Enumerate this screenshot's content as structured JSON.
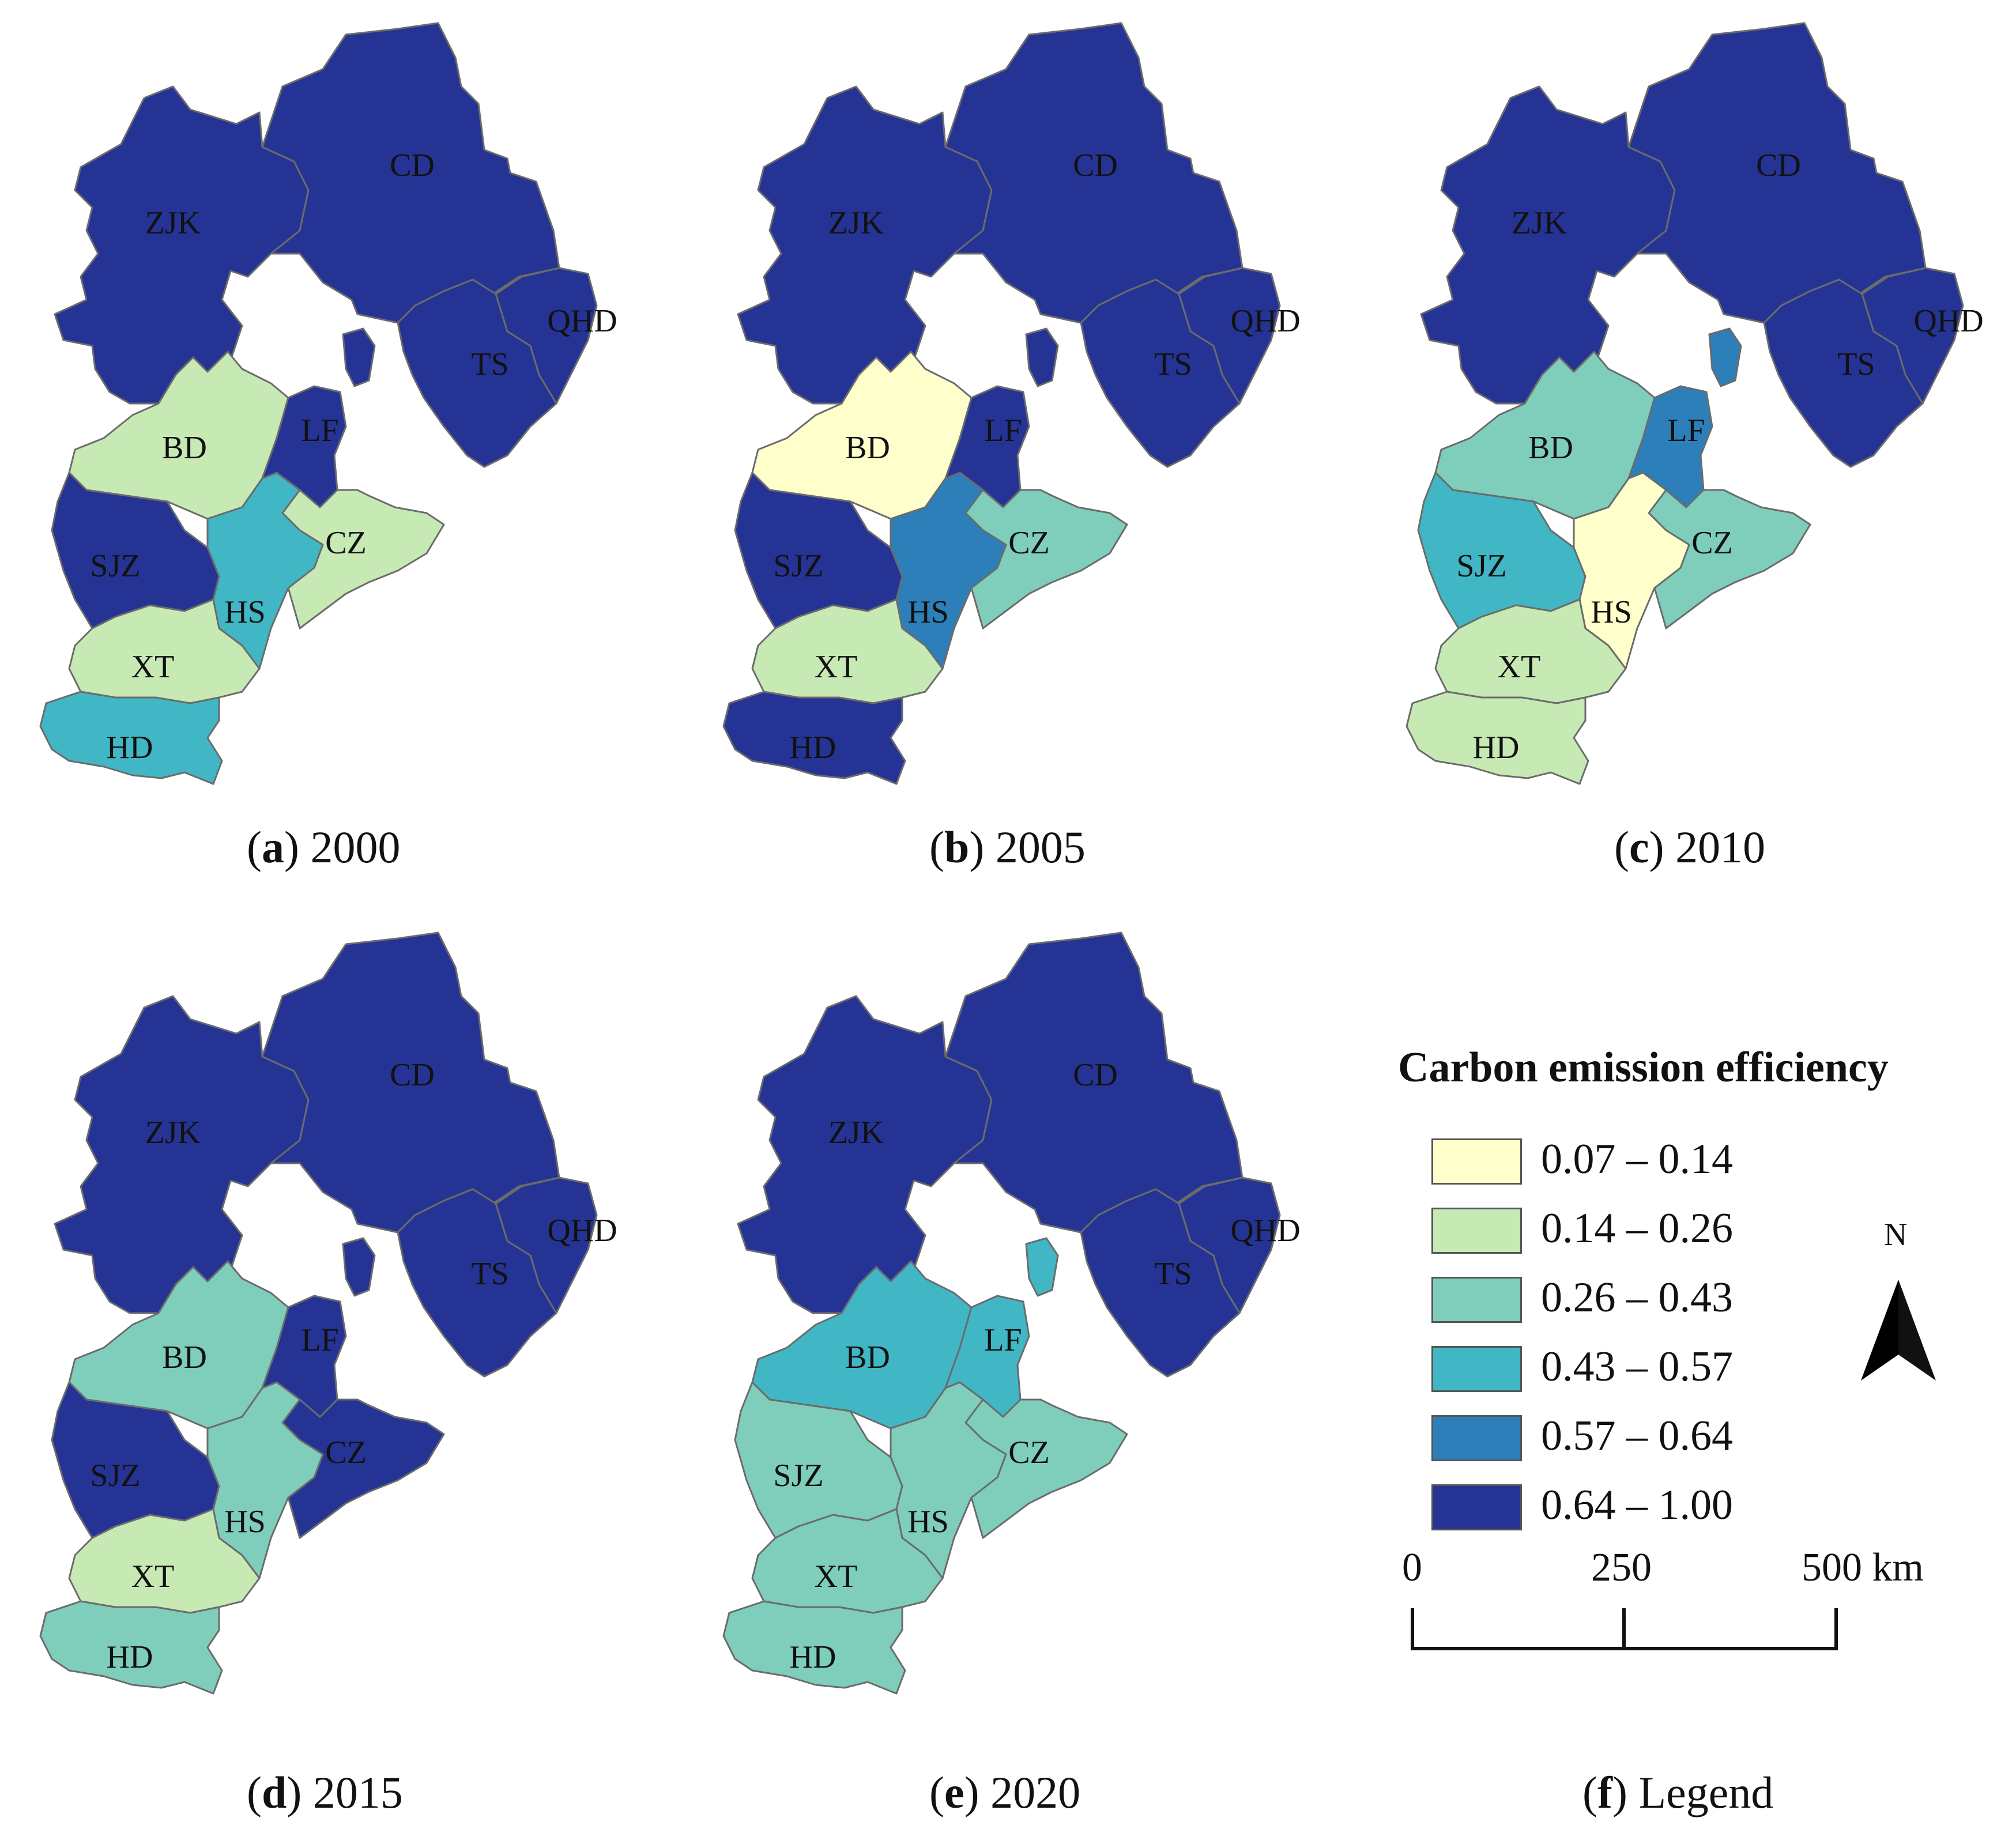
{
  "palette": [
    "#ffffcc",
    "#c7e9b4",
    "#7fcdbb",
    "#41b6c4",
    "#2c7fb8",
    "#253494"
  ],
  "regions": [
    "ZJK",
    "CD",
    "QHD",
    "TS",
    "BD",
    "LF",
    "CZ",
    "SJZ",
    "HS",
    "XT",
    "HD"
  ],
  "panels": [
    {
      "caption_letter": "a",
      "caption_year": "2000",
      "classes": {
        "ZJK": 5,
        "CD": 5,
        "QHD": 5,
        "TS": 5,
        "BJ": 5,
        "BD": 1,
        "LF": 5,
        "CZ": 1,
        "SJZ": 5,
        "HS": 3,
        "XT": 1,
        "HD": 3
      }
    },
    {
      "caption_letter": "b",
      "caption_year": "2005",
      "classes": {
        "ZJK": 5,
        "CD": 5,
        "QHD": 5,
        "TS": 5,
        "BJ": 5,
        "BD": 0,
        "LF": 5,
        "CZ": 2,
        "SJZ": 5,
        "HS": 4,
        "XT": 1,
        "HD": 5
      }
    },
    {
      "caption_letter": "c",
      "caption_year": "2010",
      "classes": {
        "ZJK": 5,
        "CD": 5,
        "QHD": 5,
        "TS": 5,
        "BJ": 4,
        "BD": 2,
        "LF": 4,
        "CZ": 2,
        "SJZ": 3,
        "HS": 0,
        "XT": 1,
        "HD": 1
      }
    },
    {
      "caption_letter": "d",
      "caption_year": "2015",
      "classes": {
        "ZJK": 5,
        "CD": 5,
        "QHD": 5,
        "TS": 5,
        "BJ": 5,
        "BD": 2,
        "LF": 5,
        "CZ": 5,
        "SJZ": 5,
        "HS": 2,
        "XT": 1,
        "HD": 2
      }
    },
    {
      "caption_letter": "e",
      "caption_year": "2020",
      "classes": {
        "ZJK": 5,
        "CD": 5,
        "QHD": 5,
        "TS": 5,
        "BJ": 3,
        "BD": 3,
        "LF": 3,
        "CZ": 2,
        "SJZ": 2,
        "HS": 2,
        "XT": 2,
        "HD": 2
      }
    }
  ],
  "legend": {
    "caption_letter": "f",
    "caption_text": "Legend",
    "title": "Carbon emission efficiency",
    "classes": [
      {
        "label": "0.07 – 0.14",
        "color": "#ffffcc"
      },
      {
        "label": "0.14 – 0.26",
        "color": "#c7e9b4"
      },
      {
        "label": "0.26 – 0.43",
        "color": "#7fcdbb"
      },
      {
        "label": "0.43 – 0.57",
        "color": "#41b6c4"
      },
      {
        "label": "0.57 – 0.64",
        "color": "#2c7fb8"
      },
      {
        "label": "0.64 – 1.00",
        "color": "#253494"
      }
    ],
    "north_label": "N",
    "scale_labels": [
      "0",
      "250",
      "500 km"
    ]
  }
}
